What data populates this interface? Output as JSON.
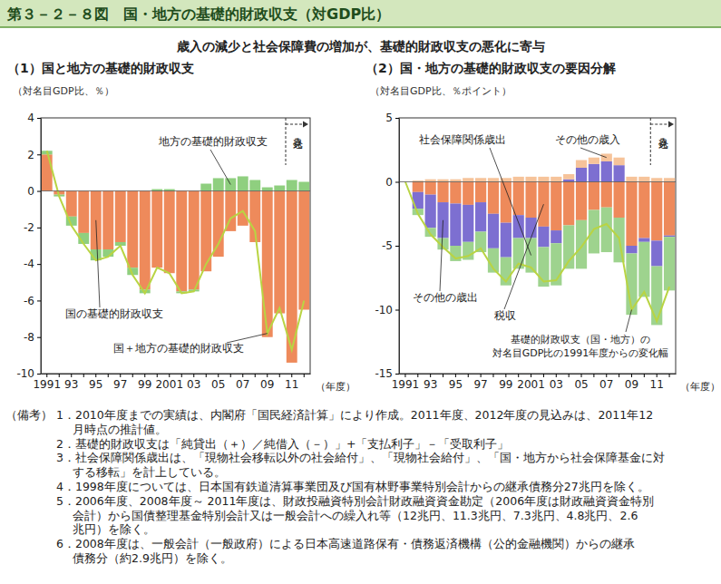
{
  "header": {
    "title": "第３－２－８図　国・地方の基礎的財政収支（対GDP比）",
    "subtitle": "歳入の減少と社会保障費の増加が、基礎的財政収支の悪化に寄与"
  },
  "chart_data": [
    {
      "type": "bar",
      "title": "（1）国と地方の基礎的財政収支",
      "ylabel": "（対名目GDP比、％）",
      "xlabel": "（年度）",
      "stacked": true,
      "grid": false,
      "categories": [
        "1991",
        null,
        "93",
        null,
        "95",
        null,
        "97",
        null,
        "99",
        null,
        "2001",
        null,
        "03",
        null,
        "05",
        null,
        "07",
        null,
        "09",
        null,
        "11",
        null
      ],
      "ylim": [
        -10,
        4
      ],
      "yticks": [
        -10,
        -8,
        -6,
        -4,
        -2,
        0,
        2,
        4
      ],
      "series": [
        {
          "name": "国の基礎的財政収支",
          "type": "bar",
          "color": "#ee8a5b",
          "values": [
            2.0,
            -0.2,
            -1.4,
            -2.3,
            -3.2,
            -3.2,
            -2.8,
            -4.2,
            -5.4,
            -4.2,
            -4.5,
            -5.5,
            -5.4,
            -4.4,
            -3.6,
            -2.2,
            -1.9,
            -2.8,
            -8.0,
            -6.7,
            -9.4,
            -6.5
          ]
        },
        {
          "name": "地方の基礎的財政収支",
          "type": "bar",
          "color": "#8fcf7f",
          "values": [
            0.2,
            -0.1,
            -0.5,
            -0.6,
            -0.6,
            -0.4,
            -0.2,
            -0.4,
            -0.2,
            0.1,
            0.1,
            -0.1,
            -0.1,
            0.4,
            0.7,
            0.7,
            0.8,
            0.6,
            0.2,
            0.3,
            0.6,
            0.5
          ]
        },
        {
          "name": "国＋地方の基礎的財政収支",
          "type": "line",
          "color": "#b9d443",
          "values": [
            2.2,
            -0.3,
            -1.9,
            -2.9,
            -3.8,
            -3.6,
            -3.0,
            -4.6,
            -5.6,
            -4.2,
            -4.5,
            -5.6,
            -5.5,
            -4.0,
            -2.9,
            -1.5,
            -1.1,
            -2.2,
            -7.8,
            -6.4,
            -8.7,
            -6.0
          ]
        }
      ],
      "annotations": [
        {
          "text": "見込み",
          "category": "11"
        }
      ]
    },
    {
      "type": "bar",
      "title": "（2）国・地方の基礎的財政収支の要因分解",
      "ylabel": "（対名目GDP比、％ポイント）",
      "xlabel": "（年度）",
      "stacked": true,
      "grid": false,
      "categories": [
        "1991",
        null,
        "93",
        null,
        "95",
        null,
        "97",
        null,
        "99",
        null,
        "2001",
        null,
        "03",
        null,
        "05",
        null,
        "07",
        null,
        "09",
        null,
        "11",
        null
      ],
      "ylim": [
        -15,
        5
      ],
      "yticks": [
        -15,
        -10,
        -5,
        0,
        5
      ],
      "series": [
        {
          "name": "税収",
          "type": "bar",
          "color": "#ee8a5b",
          "values": [
            0,
            -0.8,
            -1.0,
            -1.6,
            -1.7,
            -1.8,
            -1.6,
            -2.5,
            -3.2,
            -2.6,
            -2.8,
            -3.5,
            -3.8,
            -3.4,
            -3.0,
            -2.2,
            -2.0,
            -2.8,
            -5.0,
            -4.4,
            -4.6,
            -4.2
          ]
        },
        {
          "name": "その他の歳出",
          "type": "bar",
          "color": "#7d6fd1",
          "values": [
            0,
            -1.3,
            -2.6,
            -2.8,
            -3.3,
            -2.9,
            -2.3,
            -2.7,
            -2.7,
            -1.8,
            -1.6,
            -1.6,
            -1.0,
            0.2,
            1.1,
            1.4,
            1.6,
            1.3,
            -0.6,
            -0.3,
            -2.0,
            -0.1
          ]
        },
        {
          "name": "その他の歳入",
          "type": "bar",
          "color": "#f6c39a",
          "values": [
            0,
            0.1,
            0.2,
            0.2,
            0.2,
            0.3,
            0.3,
            0.3,
            0.3,
            0.4,
            0.4,
            0.4,
            0.4,
            0.4,
            0.6,
            0.5,
            0.6,
            0.6,
            0.4,
            0.4,
            0.3,
            0.3
          ]
        },
        {
          "name": "社会保障関係歳出",
          "type": "bar",
          "color": "#9ed38e",
          "values": [
            0,
            -0.5,
            -0.7,
            -0.9,
            -1.2,
            -1.4,
            -1.6,
            -1.9,
            -2.2,
            -2.4,
            -2.7,
            -3.1,
            -3.3,
            -3.4,
            -3.8,
            -3.4,
            -3.5,
            -3.5,
            -4.8,
            -4.3,
            -4.6,
            -4.2
          ]
        },
        {
          "name": "基礎的財政収支（国・地方）の対名目GDP比の1991年度からの変化幅",
          "type": "line",
          "color": "#b9d443",
          "values": [
            0,
            -2.5,
            -4.1,
            -5.1,
            -6.0,
            -5.8,
            -5.2,
            -6.8,
            -7.8,
            -6.4,
            -6.7,
            -7.8,
            -7.7,
            -6.2,
            -5.1,
            -3.7,
            -3.3,
            -4.4,
            -10.0,
            -8.6,
            -10.9,
            -8.2
          ]
        }
      ],
      "annotations": [
        {
          "text": "見込み",
          "category": "11"
        }
      ]
    }
  ],
  "notes": {
    "label": "（備考）",
    "items": [
      [
        "1．2010年度までの実績は、内閣府「国民経済計算」により作成。2011年度、2012年度の見込みは、2011年12",
        "月時点の推計値。"
      ],
      [
        "2．基礎的財政収支は「純貸出（＋）／純借入（－）」+「支払利子」－「受取利子」"
      ],
      [
        "3．社会保障関係歳出は、「現物社会移転以外の社会給付」、「現物社会給付」、「国・地方から社会保障基金に対",
        "する移転」を計上している。"
      ],
      [
        "4．1998年度については、日本国有鉄道清算事業団及び国有林野事業特別会計からの継承債務分27兆円を除く。"
      ],
      [
        "5．2006年度、2008年度～ 2011年度は、財政投融資特別会計財政融資資金勘定（2006年度は財政融資資金特別",
        "会計）から国債整理基金特別会計又は一般会計への繰入れ等（12兆円、11.3兆円、7.3兆円、4.8兆円、2.6",
        "兆円）を除く。"
      ],
      [
        "6．2008年度は、一般会計（一般政府）による日本高速道路保有・債務返済機構（公的金融機関）からの継承",
        "債務分（約2.9兆円）を除く。"
      ]
    ]
  }
}
